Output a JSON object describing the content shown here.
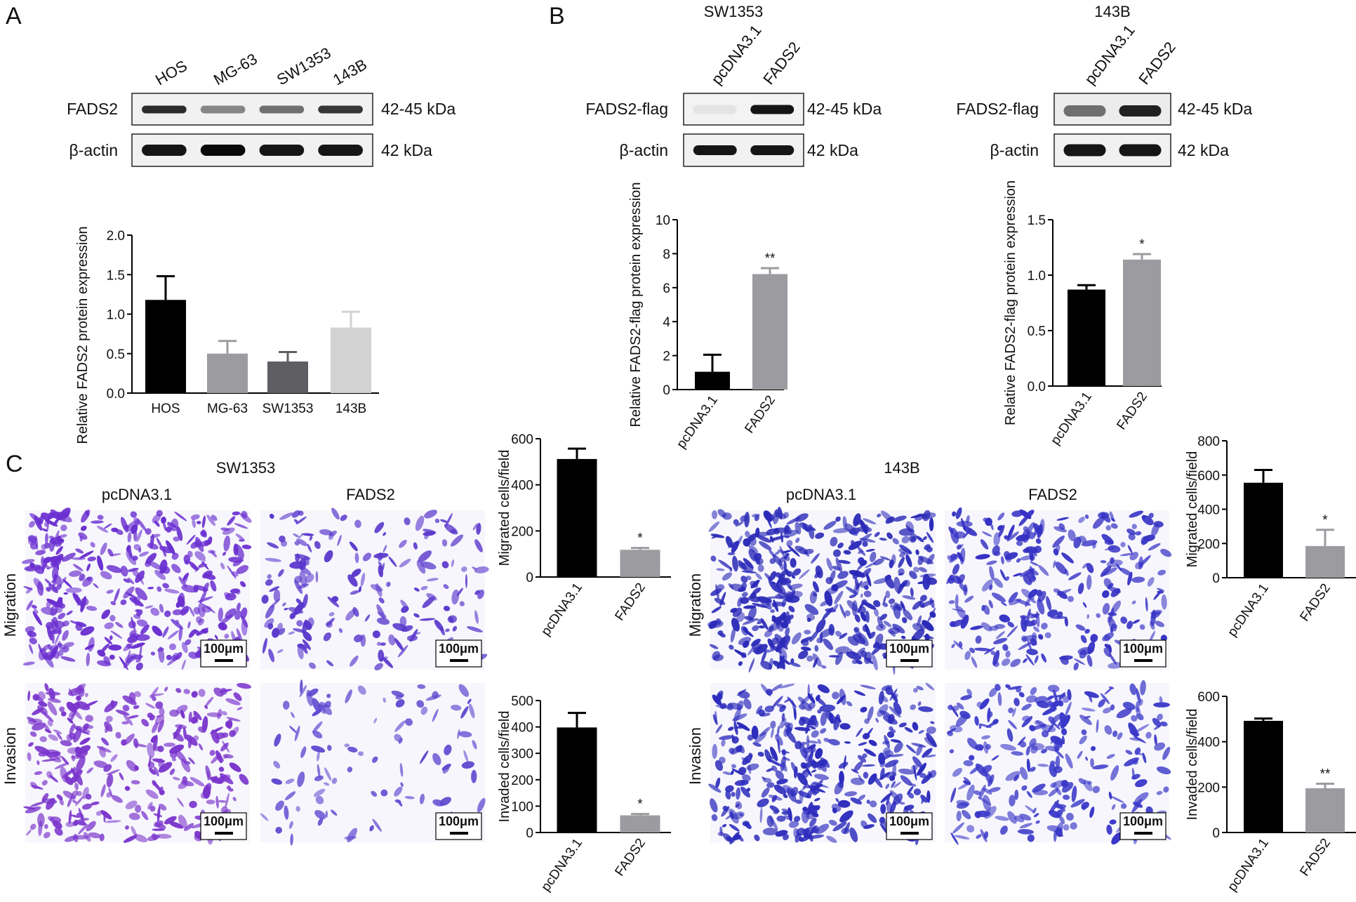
{
  "panels": {
    "A": "A",
    "B": "B",
    "C": "C"
  },
  "panelA": {
    "lanes": [
      "HOS",
      "MG-63",
      "SW1353",
      "143B"
    ],
    "blots": [
      {
        "label": "FADS2",
        "size": "42-45 kDa",
        "bands": [
          0.85,
          0.45,
          0.55,
          0.8
        ]
      },
      {
        "label": "β-actin",
        "size": "42 kDa",
        "bands": [
          0.95,
          1.0,
          0.95,
          0.95
        ]
      }
    ]
  },
  "panelB": {
    "sw": {
      "title": "SW1353",
      "lanes": [
        "pcDNA3.1",
        "FADS2"
      ],
      "blots": [
        {
          "label": "FADS2-flag",
          "size": "42-45 kDa",
          "bands": [
            0.03,
            0.95
          ]
        },
        {
          "label": "β-actin",
          "size": "42 kDa",
          "bands": [
            0.95,
            0.95
          ]
        }
      ]
    },
    "b143": {
      "title": "143B",
      "lanes": [
        "pcDNA3.1",
        "FADS2"
      ],
      "blots": [
        {
          "label": "FADS2-flag",
          "size": "42-45 kDa",
          "bands": [
            0.55,
            0.9
          ]
        },
        {
          "label": "β-actin",
          "size": "42 kDa",
          "bands": [
            0.95,
            0.95
          ]
        }
      ]
    }
  },
  "panelC": {
    "sw": {
      "title": "SW1353",
      "cols": [
        "pcDNA3.1",
        "FADS2"
      ]
    },
    "b143": {
      "title": "143B",
      "cols": [
        "pcDNA3.1",
        "FADS2"
      ]
    },
    "rows": [
      "Migration",
      "Invasion"
    ],
    "scalebar": "100μm",
    "images": [
      {
        "color": "#6a2fd0",
        "density": 0.85
      },
      {
        "color": "#5a38cc",
        "density": 0.35
      },
      {
        "color": "#7a35cc",
        "density": 0.7
      },
      {
        "color": "#5f4ad0",
        "density": 0.15
      },
      {
        "color": "#2b2ab8",
        "density": 1.0
      },
      {
        "color": "#3531c4",
        "density": 0.6
      },
      {
        "color": "#2c2bbc",
        "density": 0.85
      },
      {
        "color": "#3a38c8",
        "density": 0.55
      }
    ]
  },
  "chart_data": [
    {
      "type": "bar",
      "id": "A",
      "categories": [
        "HOS",
        "MG-63",
        "SW1353",
        "143B"
      ],
      "values": [
        1.18,
        0.5,
        0.4,
        0.83
      ],
      "errors": [
        0.3,
        0.16,
        0.12,
        0.2
      ],
      "colors": [
        "#000000",
        "#9b9ba0",
        "#5f5f63",
        "#d2d2d2"
      ],
      "ylabel": "Relative FADS2 protein expression",
      "ylim": [
        0,
        2
      ],
      "yticks": [
        0,
        0.5,
        1,
        1.5,
        2
      ],
      "ytick_labels": [
        "0.0",
        "0.5",
        "1.0",
        "1.5",
        "2.0"
      ],
      "stars": [
        "",
        "",
        "",
        ""
      ]
    },
    {
      "type": "bar",
      "id": "B-SW1353",
      "categories": [
        "pcDNA3.1",
        "FADS2"
      ],
      "values": [
        1.05,
        6.8
      ],
      "errors": [
        1.0,
        0.35
      ],
      "colors": [
        "#000000",
        "#9b9ba0"
      ],
      "ylabel": "Relative FADS2-flag protein expression",
      "ylim": [
        0,
        10
      ],
      "yticks": [
        0,
        2,
        4,
        6,
        8,
        10
      ],
      "ytick_labels": [
        "0",
        "2",
        "4",
        "6",
        "8",
        "10"
      ],
      "stars": [
        "",
        "**"
      ]
    },
    {
      "type": "bar",
      "id": "B-143B",
      "categories": [
        "pcDNA3.1",
        "FADS2"
      ],
      "values": [
        0.87,
        1.14
      ],
      "errors": [
        0.04,
        0.05
      ],
      "colors": [
        "#000000",
        "#9b9ba0"
      ],
      "ylabel": "Relative FADS2-flag protein expression",
      "ylim": [
        0,
        1.5
      ],
      "yticks": [
        0,
        0.5,
        1,
        1.5
      ],
      "ytick_labels": [
        "0.0",
        "0.5",
        "1.0",
        "1.5"
      ],
      "stars": [
        "",
        "*"
      ]
    },
    {
      "type": "bar",
      "id": "C-SW1353-migration",
      "categories": [
        "pcDNA3.1",
        "FADS2"
      ],
      "values": [
        512,
        118
      ],
      "errors": [
        45,
        8
      ],
      "colors": [
        "#000000",
        "#9b9ba0"
      ],
      "ylabel": "Migrated cells/field",
      "ylim": [
        0,
        600
      ],
      "yticks": [
        0,
        200,
        400,
        600
      ],
      "ytick_labels": [
        "0",
        "200",
        "400",
        "600"
      ],
      "stars": [
        "",
        "*"
      ]
    },
    {
      "type": "bar",
      "id": "C-SW1353-invasion",
      "categories": [
        "pcDNA3.1",
        "FADS2"
      ],
      "values": [
        398,
        65
      ],
      "errors": [
        55,
        5
      ],
      "colors": [
        "#000000",
        "#9b9ba0"
      ],
      "ylabel": "Invaded cells/field",
      "ylim": [
        0,
        500
      ],
      "yticks": [
        0,
        100,
        200,
        300,
        400,
        500
      ],
      "ytick_labels": [
        "0",
        "100",
        "200",
        "300",
        "400",
        "500"
      ],
      "stars": [
        "",
        "*"
      ]
    },
    {
      "type": "bar",
      "id": "C-143B-migration",
      "categories": [
        "pcDNA3.1",
        "FADS2"
      ],
      "values": [
        555,
        185
      ],
      "errors": [
        75,
        95
      ],
      "colors": [
        "#000000",
        "#9b9ba0"
      ],
      "ylabel": "Migrated cells/field",
      "ylim": [
        0,
        800
      ],
      "yticks": [
        0,
        200,
        400,
        600,
        800
      ],
      "ytick_labels": [
        "0",
        "200",
        "400",
        "600",
        "800"
      ],
      "stars": [
        "",
        "*"
      ]
    },
    {
      "type": "bar",
      "id": "C-143B-invasion",
      "categories": [
        "pcDNA3.1",
        "FADS2"
      ],
      "values": [
        492,
        195
      ],
      "errors": [
        10,
        20
      ],
      "colors": [
        "#000000",
        "#9b9ba0"
      ],
      "ylabel": "Invaded cells/field",
      "ylim": [
        0,
        600
      ],
      "yticks": [
        0,
        200,
        400,
        600
      ],
      "ytick_labels": [
        "0",
        "200",
        "400",
        "600"
      ],
      "stars": [
        "",
        "**"
      ]
    }
  ]
}
